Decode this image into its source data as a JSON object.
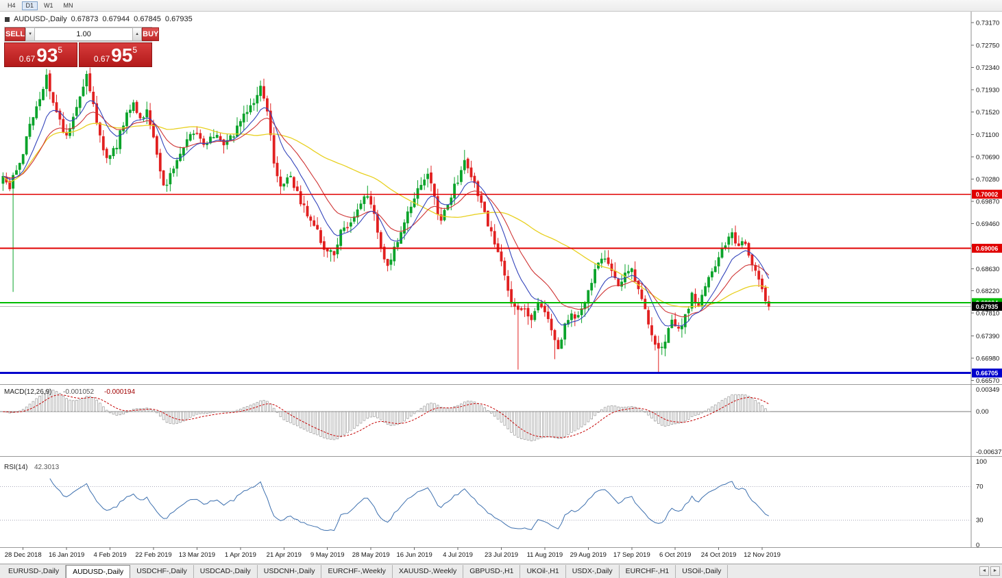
{
  "toolbar": {
    "periods": [
      {
        "label": "H4",
        "active": false
      },
      {
        "label": "D1",
        "active": true
      },
      {
        "label": "W1",
        "active": false
      },
      {
        "label": "MN",
        "active": false
      }
    ]
  },
  "chart_header": {
    "symbol": "AUDUSD-,Daily",
    "open": "0.67873",
    "high": "0.67944",
    "low": "0.67845",
    "close": "0.67935"
  },
  "trade_panel": {
    "sell_label": "SELL",
    "buy_label": "BUY",
    "volume": "1.00",
    "sell_price": {
      "small": "0.67",
      "big": "93",
      "sup": "5"
    },
    "buy_price": {
      "small": "0.67",
      "big": "95",
      "sup": "5"
    }
  },
  "price_axis": {
    "ticks": [
      "0.73170",
      "0.72750",
      "0.72340",
      "0.71930",
      "0.71520",
      "0.71100",
      "0.70690",
      "0.70280",
      "0.69870",
      "0.69460",
      "0.69050",
      "0.68630",
      "0.68220",
      "0.67810",
      "0.67390",
      "0.66980",
      "0.66570"
    ]
  },
  "levels": [
    {
      "value": 0.70002,
      "label": "0.70002",
      "color": "#e00000",
      "width": 1.6
    },
    {
      "value": 0.69006,
      "label": "0.69006",
      "color": "#e00000",
      "width": 1.6
    },
    {
      "value": 0.68004,
      "label": "0.68004",
      "color": "#00bb00",
      "width": 2
    },
    {
      "value": 0.66705,
      "label": "0.66705",
      "color": "#0000cc",
      "width": 3
    }
  ],
  "current_price": {
    "value": 0.67935,
    "label": "0.67935",
    "line_color": "#b8b8b8",
    "box_color": "#000000"
  },
  "indicators": {
    "macd": {
      "name": "MACD(12,26,9)",
      "value_main": "-0.001052",
      "value_signal": "-0.000194",
      "axis_max": "0.00349",
      "axis_zero": "0.00",
      "axis_min": "-0.00637",
      "scale_max": 0.00349,
      "scale_min": -0.00637
    },
    "rsi": {
      "name": "RSI(14)",
      "value": "42.3013",
      "axis": [
        "100",
        "70",
        "30",
        "0"
      ],
      "level_lines": [
        70,
        30
      ]
    }
  },
  "date_axis": {
    "labels": [
      "28 Dec 2018",
      "16 Jan 2019",
      "4 Feb 2019",
      "22 Feb 2019",
      "13 Mar 2019",
      "1 Apr 2019",
      "21 Apr 2019",
      "9 May 2019",
      "28 May 2019",
      "16 Jun 2019",
      "4 Jul 2019",
      "23 Jul 2019",
      "11 Aug 2019",
      "29 Aug 2019",
      "17 Sep 2019",
      "6 Oct 2019",
      "24 Oct 2019",
      "12 Nov 2019"
    ]
  },
  "tabs": {
    "items": [
      {
        "label": "EURUSD-,Daily",
        "active": false
      },
      {
        "label": "AUDUSD-,Daily",
        "active": true
      },
      {
        "label": "USDCHF-,Daily",
        "active": false
      },
      {
        "label": "USDCAD-,Daily",
        "active": false
      },
      {
        "label": "USDCNH-,Daily",
        "active": false
      },
      {
        "label": "EURCHF-,Weekly",
        "active": false
      },
      {
        "label": "XAUUSD-,Weekly",
        "active": false
      },
      {
        "label": "GBPUSD-,H1",
        "active": false
      },
      {
        "label": "UKOil-,H1",
        "active": false
      },
      {
        "label": "USDX-,Daily",
        "active": false
      },
      {
        "label": "EURCHF-,H1",
        "active": false
      },
      {
        "label": "USOil-,Daily",
        "active": false
      }
    ],
    "scroll_left": "◄",
    "scroll_right": "►"
  },
  "chart_data": {
    "type": "candlestick",
    "symbol": "AUDUSD",
    "timeframe": "Daily",
    "candle_count": 230,
    "visible_slots": 290,
    "ylim": [
      0.6655,
      0.7323
    ],
    "ma": {
      "fast": 10,
      "mid": 20,
      "slow": 50
    },
    "macd_params": [
      12,
      26,
      9
    ],
    "rsi_period": 14,
    "seed": 42,
    "colors": {
      "up": "#0aa32a",
      "down": "#e12020",
      "ma_fast": "#3344bb",
      "ma_mid": "#cf3333",
      "ma_slow": "#e8d01f",
      "macd_hist": "#a0a0a0",
      "macd_signal": "#c40000",
      "rsi": "#3c6fae"
    },
    "anchors": [
      [
        0,
        0.7032
      ],
      [
        2,
        0.7008
      ],
      [
        3,
        0.703
      ],
      [
        5,
        0.7058
      ],
      [
        8,
        0.7125
      ],
      [
        11,
        0.7178
      ],
      [
        13,
        0.7218
      ],
      [
        16,
        0.7152
      ],
      [
        19,
        0.7102
      ],
      [
        22,
        0.7158
      ],
      [
        25,
        0.7222
      ],
      [
        27,
        0.7168
      ],
      [
        29,
        0.7105
      ],
      [
        31,
        0.7062
      ],
      [
        34,
        0.7092
      ],
      [
        37,
        0.7148
      ],
      [
        39,
        0.7168
      ],
      [
        41,
        0.7138
      ],
      [
        43,
        0.7158
      ],
      [
        46,
        0.7072
      ],
      [
        48,
        0.7012
      ],
      [
        51,
        0.7042
      ],
      [
        54,
        0.7088
      ],
      [
        57,
        0.7118
      ],
      [
        60,
        0.7092
      ],
      [
        63,
        0.7112
      ],
      [
        66,
        0.7088
      ],
      [
        69,
        0.7112
      ],
      [
        72,
        0.7148
      ],
      [
        75,
        0.7168
      ],
      [
        77,
        0.7196
      ],
      [
        79,
        0.7148
      ],
      [
        81,
        0.7062
      ],
      [
        83,
        0.7012
      ],
      [
        86,
        0.7032
      ],
      [
        88,
        0.7002
      ],
      [
        91,
        0.6962
      ],
      [
        94,
        0.6932
      ],
      [
        96,
        0.6902
      ],
      [
        99,
        0.6888
      ],
      [
        101,
        0.6928
      ],
      [
        104,
        0.6952
      ],
      [
        106,
        0.6978
      ],
      [
        109,
        0.7002
      ],
      [
        111,
        0.6962
      ],
      [
        113,
        0.6902
      ],
      [
        115,
        0.6872
      ],
      [
        118,
        0.6912
      ],
      [
        121,
        0.6962
      ],
      [
        124,
        0.7008
      ],
      [
        127,
        0.7036
      ],
      [
        129,
        0.6992
      ],
      [
        131,
        0.6948
      ],
      [
        133,
        0.6982
      ],
      [
        136,
        0.7028
      ],
      [
        138,
        0.7058
      ],
      [
        140,
        0.7038
      ],
      [
        142,
        0.7002
      ],
      [
        144,
        0.6962
      ],
      [
        146,
        0.6932
      ],
      [
        148,
        0.6898
      ],
      [
        150,
        0.6852
      ],
      [
        152,
        0.6802
      ],
      [
        154,
        0.6782
      ],
      [
        156,
        0.6792
      ],
      [
        158,
        0.6772
      ],
      [
        160,
        0.6802
      ],
      [
        162,
        0.6782
      ],
      [
        164,
        0.6748
      ],
      [
        166,
        0.6712
      ],
      [
        168,
        0.6762
      ],
      [
        170,
        0.6782
      ],
      [
        172,
        0.6772
      ],
      [
        174,
        0.6802
      ],
      [
        176,
        0.6842
      ],
      [
        178,
        0.6868
      ],
      [
        180,
        0.6882
      ],
      [
        182,
        0.6858
      ],
      [
        184,
        0.6832
      ],
      [
        186,
        0.6856
      ],
      [
        188,
        0.6862
      ],
      [
        190,
        0.6822
      ],
      [
        192,
        0.6782
      ],
      [
        194,
        0.6742
      ],
      [
        196,
        0.6712
      ],
      [
        198,
        0.6732
      ],
      [
        200,
        0.6762
      ],
      [
        202,
        0.6748
      ],
      [
        204,
        0.6778
      ],
      [
        206,
        0.6812
      ],
      [
        208,
        0.6792
      ],
      [
        210,
        0.6826
      ],
      [
        212,
        0.6856
      ],
      [
        214,
        0.6882
      ],
      [
        216,
        0.6906
      ],
      [
        218,
        0.6924
      ],
      [
        220,
        0.6902
      ],
      [
        222,
        0.6912
      ],
      [
        224,
        0.6876
      ],
      [
        226,
        0.6842
      ],
      [
        228,
        0.6802
      ],
      [
        229,
        0.6793
      ]
    ],
    "special_wicks": [
      {
        "i": 3,
        "low": 0.682
      },
      {
        "i": 13,
        "high": 0.7231
      },
      {
        "i": 25,
        "high": 0.7228
      },
      {
        "i": 77,
        "high": 0.7207
      },
      {
        "i": 98,
        "low": 0.6876
      },
      {
        "i": 109,
        "high": 0.7016
      },
      {
        "i": 115,
        "low": 0.6864
      },
      {
        "i": 138,
        "high": 0.7082
      },
      {
        "i": 154,
        "low": 0.6677
      },
      {
        "i": 165,
        "low": 0.6696
      },
      {
        "i": 180,
        "high": 0.6897
      },
      {
        "i": 196,
        "low": 0.6671
      },
      {
        "i": 218,
        "high": 0.6929
      }
    ]
  }
}
